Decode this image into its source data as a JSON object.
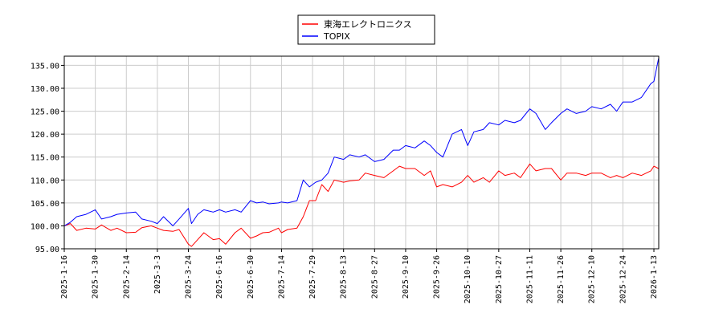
{
  "chart_data": {
    "type": "line",
    "title": "",
    "xlabel": "",
    "ylabel": "",
    "ylim": [
      95,
      137
    ],
    "yticks": [
      "95.00",
      "100.00",
      "105.00",
      "110.00",
      "115.00",
      "120.00",
      "125.00",
      "130.00",
      "135.00"
    ],
    "ytick_values": [
      95,
      100,
      105,
      110,
      115,
      120,
      125,
      130,
      135
    ],
    "xticks": [
      "2025-1-16",
      "2025-1-30",
      "2025-2-14",
      "2025-3-3",
      "2025-3-24",
      "2025-6-16",
      "2025-6-30",
      "2025-7-14",
      "2025-7-29",
      "2025-8-13",
      "2025-8-27",
      "2025-9-10",
      "2025-9-26",
      "2025-10-10",
      "2025-10-27",
      "2025-11-11",
      "2025-11-26",
      "2025-12-10",
      "2025-12-24",
      "2026-1-13"
    ],
    "grid": true,
    "legend_position": "top-center",
    "x_index_range": [
      0,
      19
    ],
    "series": [
      {
        "name": "東海エレクトロニクス",
        "color": "#ff0000",
        "x": [
          0,
          0.2,
          0.4,
          0.7,
          1.0,
          1.2,
          1.5,
          1.7,
          2.0,
          2.3,
          2.5,
          2.8,
          3.0,
          3.2,
          3.5,
          3.7,
          4.0,
          4.1,
          4.3,
          4.5,
          4.8,
          5.0,
          5.2,
          5.5,
          5.7,
          6.0,
          6.2,
          6.4,
          6.6,
          6.9,
          7.0,
          7.2,
          7.5,
          7.7,
          7.9,
          8.1,
          8.3,
          8.5,
          8.7,
          9.0,
          9.2,
          9.5,
          9.7,
          10.0,
          10.3,
          10.6,
          10.8,
          11.0,
          11.3,
          11.6,
          11.8,
          12.0,
          12.2,
          12.5,
          12.8,
          13.0,
          13.2,
          13.5,
          13.7,
          14.0,
          14.2,
          14.5,
          14.7,
          15.0,
          15.2,
          15.5,
          15.7,
          16.0,
          16.2,
          16.5,
          16.8,
          17.0,
          17.3,
          17.6,
          17.8,
          18.0,
          18.3,
          18.6,
          18.9,
          19.0,
          19.15
        ],
        "values": [
          100.0,
          100.5,
          99.0,
          99.5,
          99.3,
          100.2,
          99.0,
          99.5,
          98.5,
          98.6,
          99.6,
          100.0,
          99.5,
          99.0,
          98.8,
          99.2,
          96.0,
          95.5,
          97.0,
          98.5,
          97.0,
          97.2,
          96.0,
          98.5,
          99.5,
          97.3,
          97.8,
          98.5,
          98.6,
          99.5,
          98.5,
          99.2,
          99.5,
          102.0,
          105.5,
          105.5,
          109.0,
          107.5,
          110.0,
          109.5,
          109.8,
          110.0,
          111.5,
          111.0,
          110.5,
          112.0,
          113.0,
          112.5,
          112.5,
          111.0,
          112.0,
          108.5,
          109.0,
          108.5,
          109.5,
          111.0,
          109.5,
          110.5,
          109.5,
          112.0,
          111.0,
          111.5,
          110.5,
          113.5,
          112.0,
          112.5,
          112.5,
          110.0,
          111.5,
          111.5,
          111.0,
          111.5,
          111.5,
          110.5,
          111.0,
          110.5,
          111.5,
          111.0,
          112.0,
          113.0,
          112.5
        ]
      },
      {
        "name": "TOPIX",
        "color": "#0000ff",
        "x": [
          0,
          0.2,
          0.4,
          0.7,
          1.0,
          1.2,
          1.5,
          1.7,
          2.0,
          2.3,
          2.5,
          2.8,
          3.0,
          3.2,
          3.5,
          3.7,
          4.0,
          4.1,
          4.3,
          4.5,
          4.8,
          5.0,
          5.2,
          5.5,
          5.7,
          6.0,
          6.2,
          6.4,
          6.6,
          6.9,
          7.0,
          7.2,
          7.5,
          7.7,
          7.9,
          8.1,
          8.3,
          8.5,
          8.7,
          9.0,
          9.2,
          9.5,
          9.7,
          10.0,
          10.3,
          10.6,
          10.8,
          11.0,
          11.3,
          11.6,
          11.8,
          12.0,
          12.2,
          12.5,
          12.8,
          13.0,
          13.2,
          13.5,
          13.7,
          14.0,
          14.2,
          14.5,
          14.7,
          15.0,
          15.2,
          15.5,
          15.7,
          16.0,
          16.2,
          16.5,
          16.8,
          17.0,
          17.3,
          17.6,
          17.8,
          18.0,
          18.3,
          18.6,
          18.9,
          19.0,
          19.15
        ],
        "values": [
          100.0,
          100.8,
          102.0,
          102.5,
          103.5,
          101.5,
          102.0,
          102.5,
          102.8,
          103.0,
          101.5,
          101.0,
          100.5,
          102.0,
          100.0,
          101.5,
          103.8,
          100.5,
          102.5,
          103.5,
          103.0,
          103.5,
          103.0,
          103.5,
          103.0,
          105.5,
          105.0,
          105.2,
          104.8,
          105.0,
          105.2,
          105.0,
          105.5,
          110.0,
          108.5,
          109.5,
          110.0,
          111.5,
          115.0,
          114.5,
          115.5,
          115.0,
          115.5,
          114.0,
          114.5,
          116.5,
          116.5,
          117.5,
          117.0,
          118.5,
          117.5,
          116.0,
          115.0,
          120.0,
          121.0,
          117.5,
          120.5,
          121.0,
          122.5,
          122.0,
          123.0,
          122.5,
          123.0,
          125.5,
          124.5,
          121.0,
          122.5,
          124.5,
          125.5,
          124.5,
          125.0,
          126.0,
          125.5,
          126.5,
          125.0,
          127.0,
          127.0,
          128.0,
          131.0,
          131.5,
          136.5
        ]
      }
    ]
  }
}
